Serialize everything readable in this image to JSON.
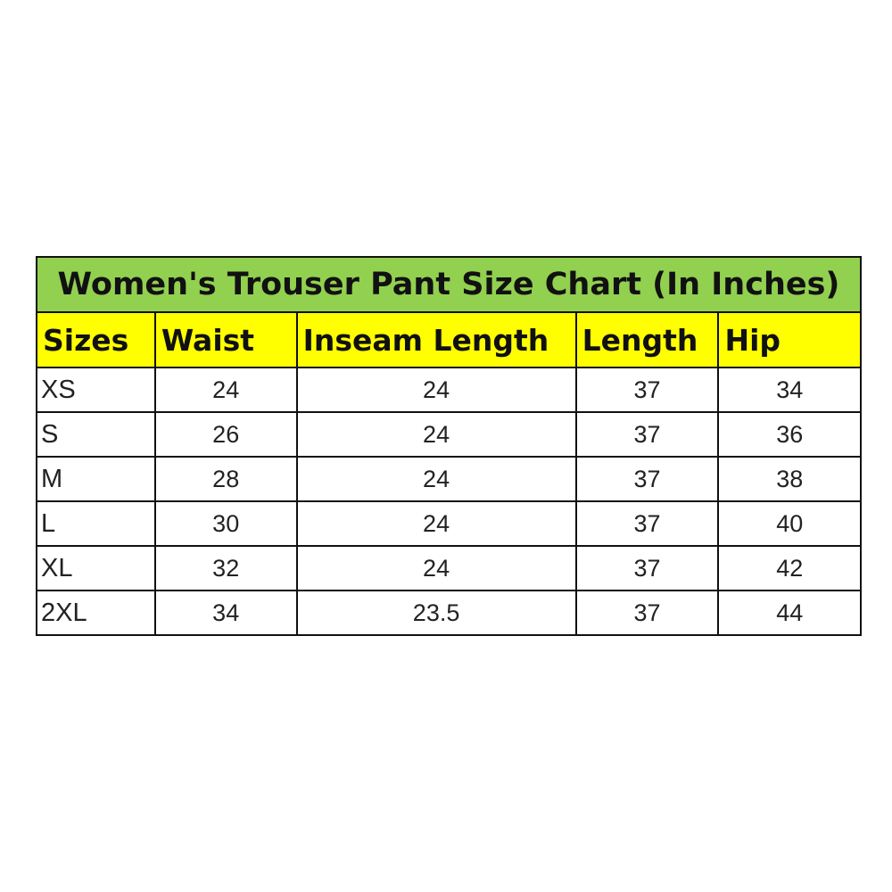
{
  "title": "Women's Trouser Pant Size Chart (In Inches)",
  "colors": {
    "title_bg": "#92d050",
    "header_bg": "#ffff00"
  },
  "headers": [
    "Sizes",
    "Waist",
    "Inseam Length",
    "Length",
    "Hip"
  ],
  "rows": [
    [
      "XS",
      "24",
      "24",
      "37",
      "34"
    ],
    [
      "S",
      "26",
      "24",
      "37",
      "36"
    ],
    [
      "M",
      "28",
      "24",
      "37",
      "38"
    ],
    [
      "L",
      "30",
      "24",
      "37",
      "40"
    ],
    [
      "XL",
      "32",
      "24",
      "37",
      "42"
    ],
    [
      "2XL",
      "34",
      "23.5",
      "37",
      "44"
    ]
  ]
}
